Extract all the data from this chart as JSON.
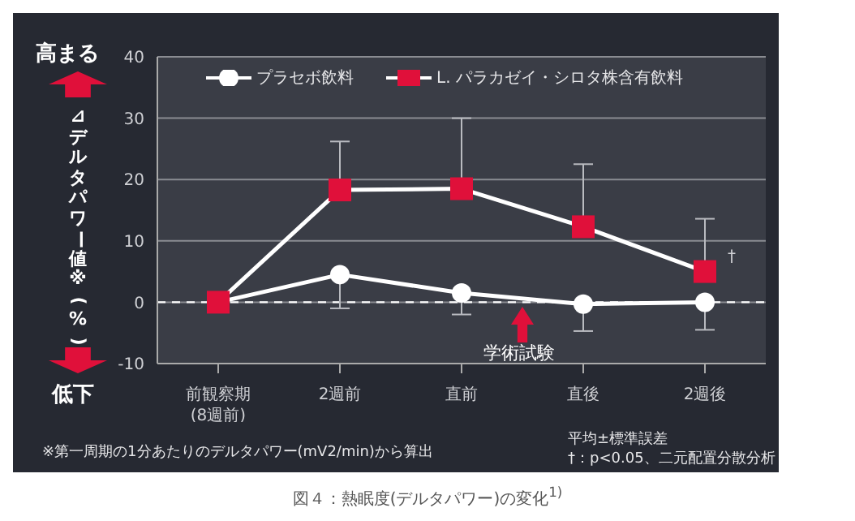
{
  "chart_data": {
    "type": "line",
    "title": "図４：熱眠度(デルタパワー)の変化$^{1)}$",
    "ylabel": "⊿デルタパワー値※(%)",
    "categories": [
      "前観察期\n(8週前)",
      "2週前",
      "直前",
      "直後",
      "2週後"
    ],
    "series": [
      {
        "name": "プラセボ飲料",
        "color": "#ffffff",
        "marker": "circle",
        "values": [
          0,
          4.5,
          1.5,
          -0.3,
          0
        ],
        "errors": [
          null,
          [
            -1,
            4.5
          ],
          [
            -2,
            1.5
          ],
          [
            -4.7,
            -0.3
          ],
          [
            -4.5,
            0
          ]
        ]
      },
      {
        "name": "L. パラカゼイ・シロタ株含有飲料",
        "color": "#e0103a",
        "marker": "square",
        "values": [
          0,
          18.3,
          18.5,
          12.3,
          5
        ],
        "errors": [
          null,
          [
            18.3,
            26.2
          ],
          [
            18.5,
            30
          ],
          [
            12.3,
            22.5
          ],
          [
            5,
            13.6
          ]
        ]
      }
    ],
    "ylim": [
      -10,
      40
    ],
    "yticks": [
      -10,
      0,
      10,
      20,
      30,
      40
    ],
    "grid": "y",
    "legend": "top",
    "ref_lines": [
      {
        "axis": "y",
        "value": 0,
        "line_style": "dashed",
        "color": "#ffffff"
      }
    ],
    "annotations": [
      "高まる",
      "低下",
      "学術試験",
      "※第一周期の1分あたりのデルタパワー(mV2/min)から算出",
      "平均±標準誤差",
      "†：p<0.05、二元配置分散分析",
      {
        "text": "†",
        "x": "2週後",
        "y": 5
      }
    ]
  }
}
